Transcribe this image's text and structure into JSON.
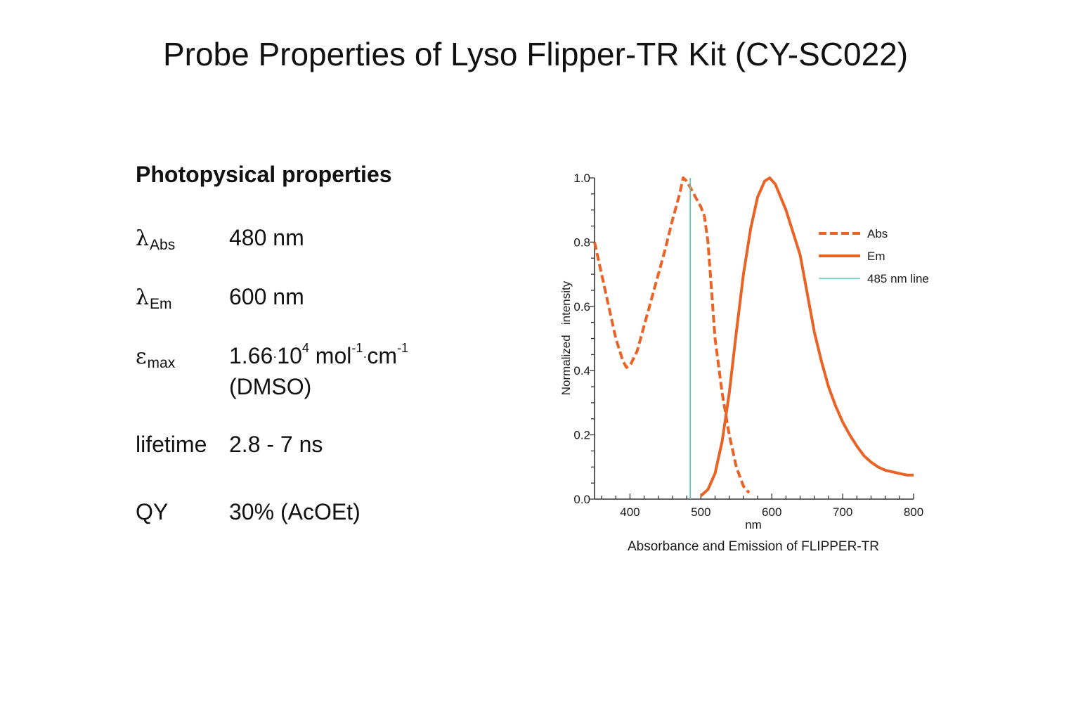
{
  "page": {
    "title": "Probe Properties of Lyso Flipper-TR Kit (CY-SC022)"
  },
  "properties": {
    "heading": "Photopysical properties",
    "rows": [
      {
        "symbol": "λ",
        "subscript": "Abs",
        "value": "480 nm"
      },
      {
        "symbol": "λ",
        "subscript": "Em",
        "value": "600 nm"
      },
      {
        "symbol": "ε",
        "subscript": "max",
        "value_parts": {
          "mantissa": "1.66",
          "dot1": "·",
          "base": "10",
          "exp": "4",
          "unit1": " mol",
          "unit1_exp": "-1",
          "dot2": "·",
          "unit2": "cm",
          "unit2_exp": "-1"
        },
        "value_line2": "(DMSO)"
      },
      {
        "label": "lifetime",
        "value": "2.8 - 7 ns"
      },
      {
        "label": "QY",
        "value": "30% (AcOEt)"
      }
    ]
  },
  "chart_data": {
    "type": "line",
    "title": "Absorbance and Emission of FLIPPER-TR",
    "xlabel": "nm",
    "ylabel": "Normalized   intensity",
    "xlim": [
      350,
      800
    ],
    "ylim": [
      0.0,
      1.0
    ],
    "xticks": [
      400,
      500,
      600,
      700,
      800
    ],
    "xtick_labels": [
      "400",
      "500",
      "600",
      "700",
      "800"
    ],
    "yticks": [
      0.0,
      0.2,
      0.4,
      0.6,
      0.8,
      1.0
    ],
    "ytick_labels": [
      "0.0",
      "0.2",
      "0.4",
      "0.6",
      "0.8",
      "1.0"
    ],
    "grid": false,
    "legend_position": "upper right (outside plot curves)",
    "colors": {
      "abs": "#ea6325",
      "em": "#ea6325",
      "line485": "#5ec8bd",
      "axis": "#333333"
    },
    "series": [
      {
        "name": "Abs",
        "style": "dashed",
        "x": [
          350,
          360,
          370,
          380,
          390,
          395,
          400,
          410,
          420,
          430,
          440,
          450,
          460,
          470,
          475,
          480,
          485,
          490,
          500,
          505,
          510,
          515,
          520,
          530,
          540,
          550,
          560,
          568
        ],
        "y": [
          0.8,
          0.7,
          0.6,
          0.5,
          0.43,
          0.41,
          0.415,
          0.46,
          0.54,
          0.62,
          0.7,
          0.78,
          0.87,
          0.95,
          1.0,
          0.99,
          0.97,
          0.95,
          0.91,
          0.88,
          0.8,
          0.65,
          0.5,
          0.33,
          0.2,
          0.1,
          0.04,
          0.02
        ]
      },
      {
        "name": "Em",
        "style": "solid",
        "x": [
          500,
          510,
          520,
          530,
          540,
          550,
          560,
          570,
          580,
          590,
          597,
          605,
          620,
          630,
          640,
          650,
          660,
          670,
          680,
          690,
          700,
          710,
          720,
          730,
          740,
          750,
          760,
          770,
          780,
          790,
          800
        ],
        "y": [
          0.01,
          0.03,
          0.08,
          0.18,
          0.33,
          0.52,
          0.7,
          0.84,
          0.94,
          0.99,
          1.0,
          0.98,
          0.9,
          0.83,
          0.76,
          0.64,
          0.52,
          0.43,
          0.35,
          0.29,
          0.24,
          0.2,
          0.165,
          0.135,
          0.115,
          0.1,
          0.09,
          0.085,
          0.08,
          0.075,
          0.075
        ]
      },
      {
        "name": "485 nm line",
        "style": "vertical",
        "x": [
          485,
          485
        ],
        "y": [
          0.0,
          1.0
        ]
      }
    ],
    "legend": [
      "Abs",
      "Em",
      "485 nm line"
    ]
  }
}
